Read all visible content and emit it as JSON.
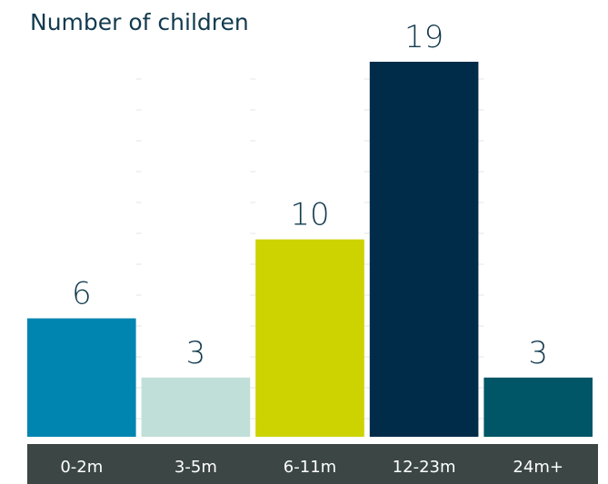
{
  "chart_data": {
    "type": "bar",
    "title": "Number of children",
    "xlabel": "",
    "ylabel": "",
    "categories": [
      "0-2m",
      "3-5m",
      "6-11m",
      "12-23m",
      "24m+"
    ],
    "values": [
      6,
      3,
      10,
      19,
      3
    ],
    "ylim": [
      0,
      19
    ],
    "grid": false,
    "legend": "none",
    "colors": [
      "#0085b0",
      "#c0dfd9",
      "#ccd300",
      "#002c4a",
      "#005566"
    ],
    "axis_band_color": "#3b4645",
    "text_color": "#123a4e"
  }
}
